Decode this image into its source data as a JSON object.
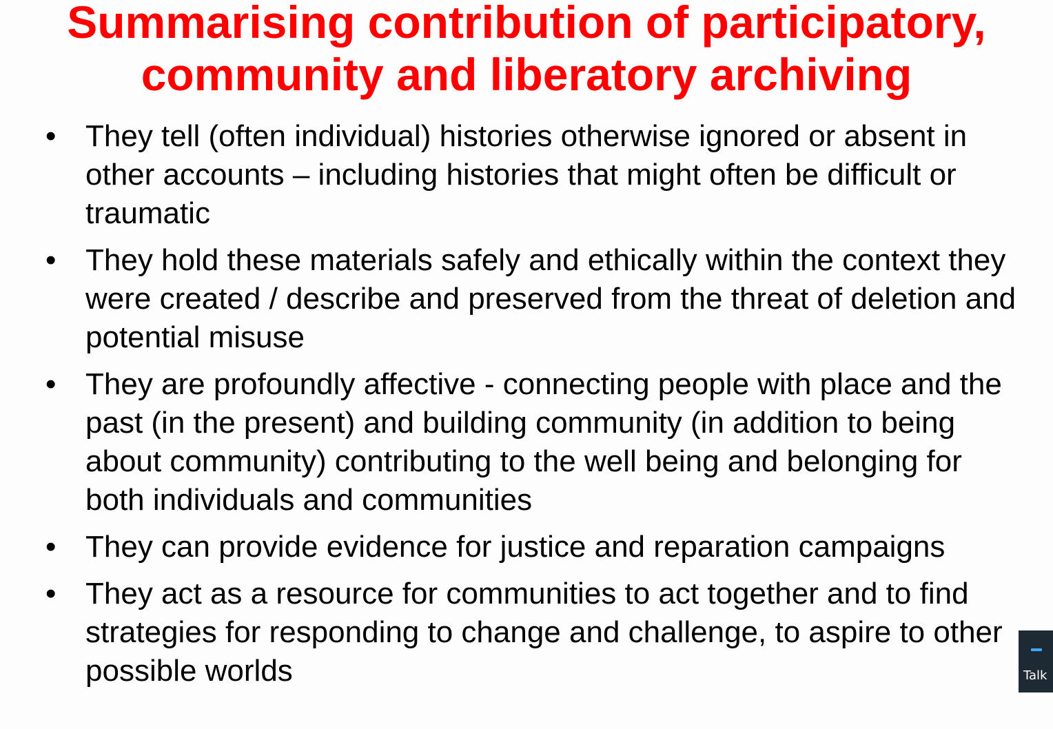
{
  "slide": {
    "title_lines": [
      "Summarising contribution of participatory,",
      "community and liberatory archiving"
    ],
    "bullets": [
      "They tell (often individual) histories otherwise ignored or absent in other accounts – including histories that might often be difficult or traumatic",
      "They hold these materials safely and ethically within the context they were created / describe and preserved from the threat of deletion and potential misuse",
      "They are profoundly affective - connecting people with place and the past (in the present) and building community (in addition to being about community) contributing to the well being and belonging for both individuals and communities",
      "They can provide evidence for justice and reparation campaigns",
      "They act as a resource for communities to act together and to find strategies for responding to change and challenge, to aspire to other possible worlds"
    ],
    "bullet_glyph": "•"
  },
  "talk_widget": {
    "label": "Talk",
    "icon": "minimize-icon"
  },
  "colors": {
    "title": "#ff0000",
    "text": "#000000",
    "background": "#fdfdfd",
    "widget_bg": "#1e2a33",
    "widget_accent": "#3ea7ff"
  }
}
